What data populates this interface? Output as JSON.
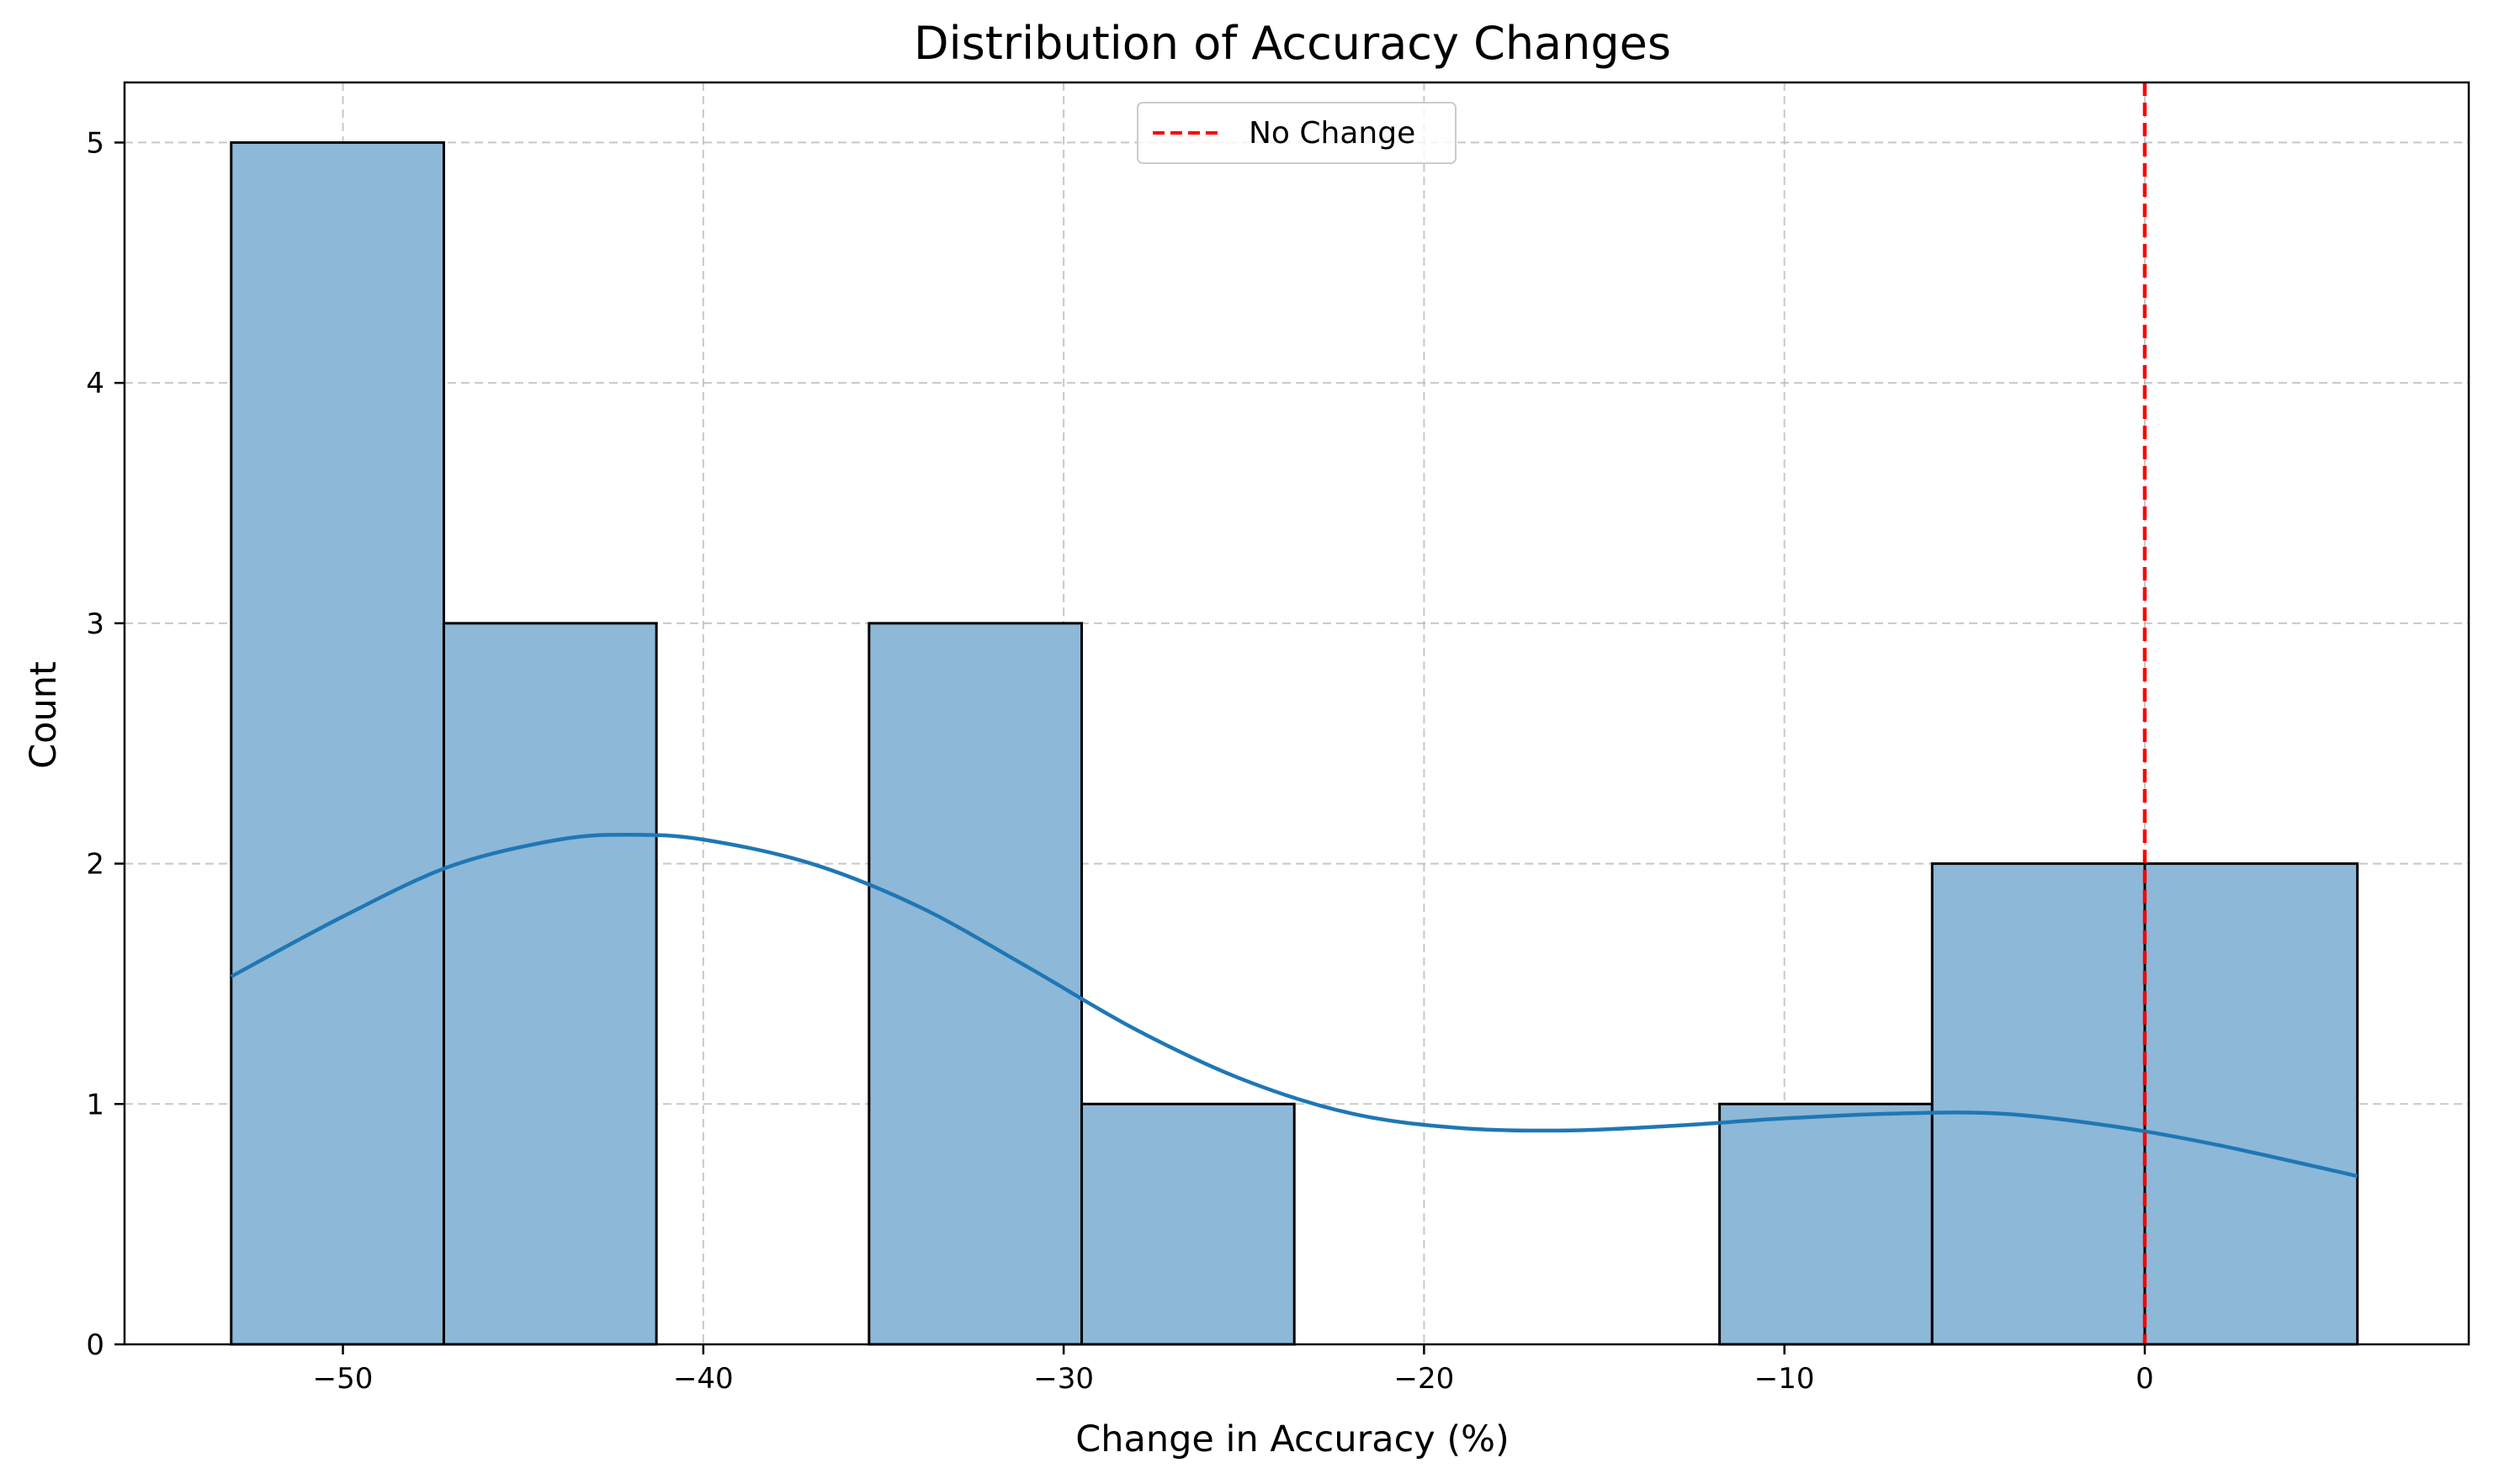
{
  "chart_data": {
    "type": "histogram",
    "title": "Distribution of Accuracy Changes",
    "xlabel": "Change in Accuracy (%)",
    "ylabel": "Count",
    "xlim": [
      -56.06,
      8.99
    ],
    "ylim": [
      0,
      5.25
    ],
    "xticks": [
      -50,
      -40,
      -30,
      -20,
      -10,
      0
    ],
    "xtick_labels": [
      "−50",
      "−40",
      "−30",
      "−20",
      "−10",
      "0"
    ],
    "yticks": [
      0,
      1,
      2,
      3,
      4,
      5
    ],
    "ytick_labels": [
      "0",
      "1",
      "2",
      "3",
      "4",
      "5"
    ],
    "grid": true,
    "bins": [
      {
        "start": -53.1,
        "end": -47.2,
        "count": 5
      },
      {
        "start": -47.2,
        "end": -41.3,
        "count": 3
      },
      {
        "start": -41.3,
        "end": -35.4,
        "count": 0
      },
      {
        "start": -35.4,
        "end": -29.5,
        "count": 3
      },
      {
        "start": -29.5,
        "end": -23.6,
        "count": 1
      },
      {
        "start": -23.6,
        "end": -17.7,
        "count": 0
      },
      {
        "start": -17.7,
        "end": -11.8,
        "count": 0
      },
      {
        "start": -11.8,
        "end": -5.9,
        "count": 1
      },
      {
        "start": -5.9,
        "end": 0.0,
        "count": 2
      },
      {
        "start": 0.0,
        "end": 5.9,
        "count": 2
      }
    ],
    "bar_color": "#8db8d8",
    "bar_edge_color": "#000000",
    "kde": {
      "color": "#1f77b4",
      "x": [
        -53.1,
        -50,
        -47,
        -44,
        -42,
        -40,
        -37,
        -34,
        -31,
        -28,
        -25,
        -22,
        -19,
        -16,
        -13,
        -10,
        -7,
        -4,
        -1,
        2,
        5.9
      ],
      "y": [
        1.53,
        1.78,
        1.99,
        2.1,
        2.12,
        2.1,
        2.0,
        1.82,
        1.57,
        1.31,
        1.1,
        0.96,
        0.9,
        0.89,
        0.91,
        0.94,
        0.96,
        0.96,
        0.91,
        0.83,
        0.7
      ]
    },
    "reference_line": {
      "x": 0,
      "label": "No Change",
      "color": "#ff0000",
      "style": "dashed"
    },
    "legend": {
      "position": "top-center",
      "entries": [
        "No Change"
      ]
    }
  }
}
